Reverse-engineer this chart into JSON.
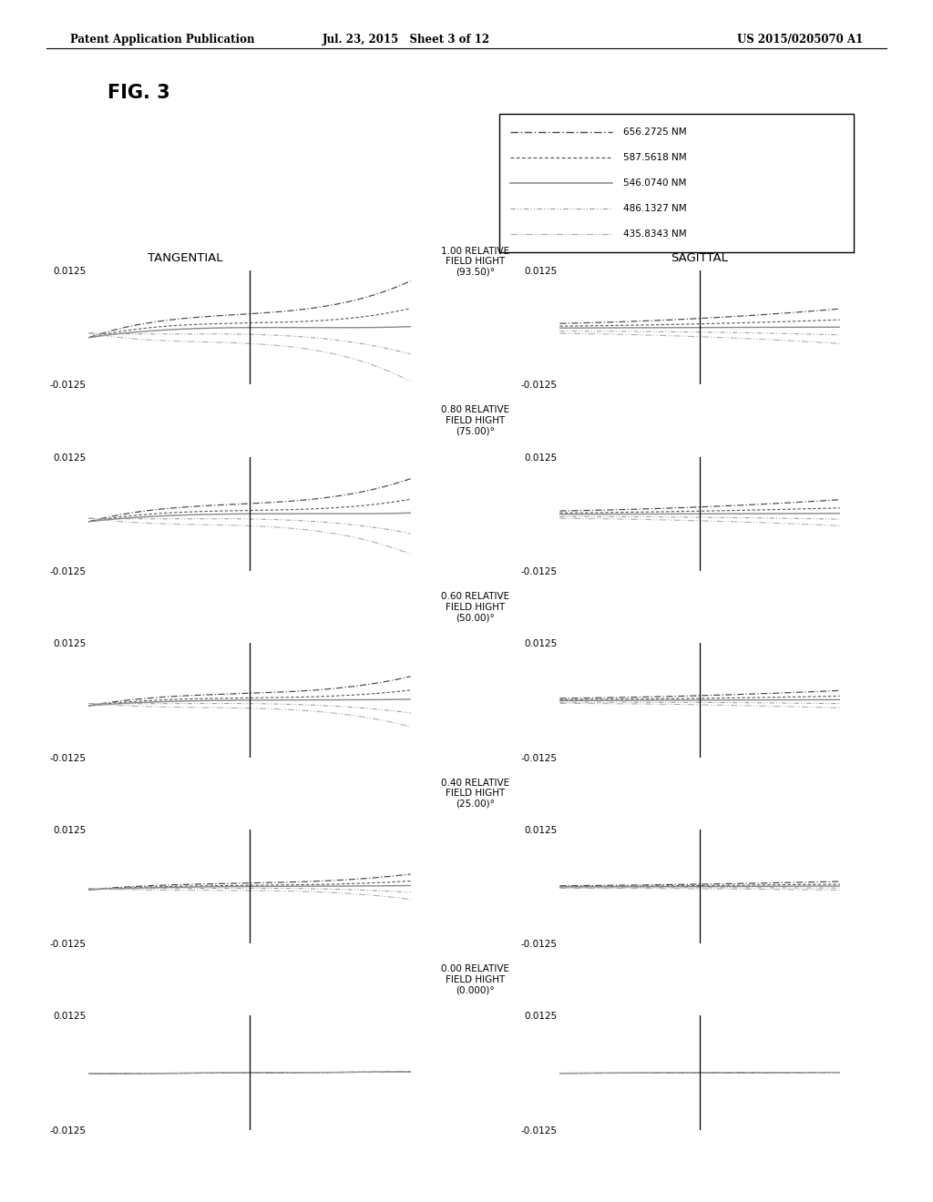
{
  "header_left": "Patent Application Publication",
  "header_center": "Jul. 23, 2015   Sheet 3 of 12",
  "header_right": "US 2015/0205070 A1",
  "fig_label": "FIG. 3",
  "legend_labels": [
    "656.2725 NM",
    "587.5618 NM",
    "546.0740 NM",
    "486.1327 NM",
    "435.8343 NM"
  ],
  "field_heights": [
    "1.00 RELATIVE\nFIELD HIGHT\n(93.50)°",
    "0.80 RELATIVE\nFIELD HIGHT\n(75.00)°",
    "0.60 RELATIVE\nFIELD HIGHT\n(50.00)°",
    "0.40 RELATIVE\nFIELD HIGHT\n(25.00)°",
    "0.00 RELATIVE\nFIELD HIGHT\n(0.000)°"
  ],
  "ylim": [
    -0.0125,
    0.0125
  ],
  "bg_color": "#ffffff",
  "tangential_label": "TANGENTIAL",
  "sagittal_label": "SAGITTAL"
}
